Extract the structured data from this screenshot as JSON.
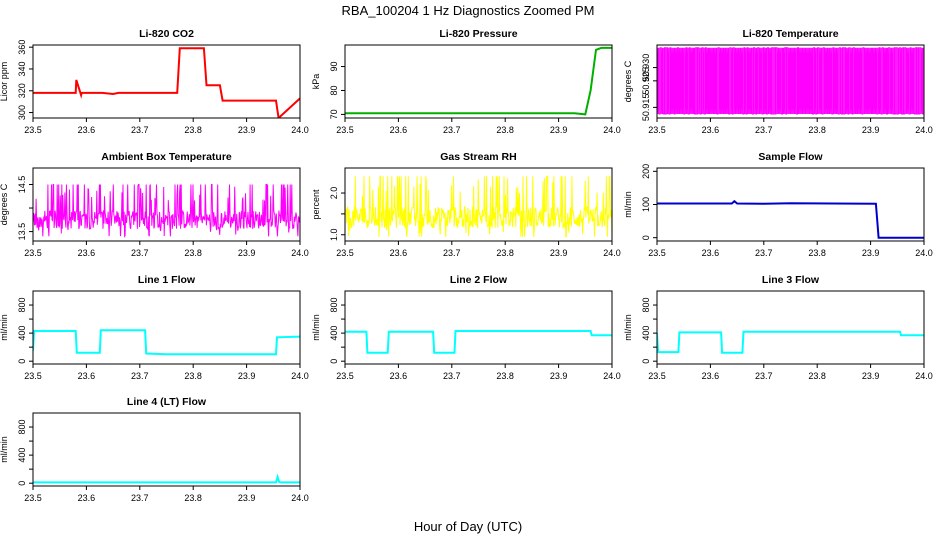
{
  "page": {
    "title": "RBA_100204  1 Hz Diagnostics Zoomed PM",
    "xlabel": "Hour of Day (UTC)"
  },
  "chart_data": [
    {
      "type": "line",
      "title": "Li-820 CO2",
      "ylabel": "Licor ppm",
      "color": "#ff0000",
      "xlim": [
        23.5,
        24.0
      ],
      "ylim": [
        295,
        362
      ],
      "xticks": [
        23.5,
        23.6,
        23.7,
        23.8,
        23.9,
        24.0
      ],
      "yticks": [
        300,
        320,
        340,
        360
      ],
      "ytick_labels": [
        "300",
        "320",
        "340",
        "360"
      ],
      "x": [
        23.5,
        23.58,
        23.581,
        23.59,
        23.591,
        23.6,
        23.63,
        23.65,
        23.66,
        23.77,
        23.775,
        23.82,
        23.825,
        23.85,
        23.855,
        23.955,
        23.96,
        24.0
      ],
      "y": [
        318,
        318,
        330,
        316,
        318,
        318,
        318,
        317,
        318,
        318,
        359,
        359,
        325,
        325,
        311,
        311,
        295,
        313
      ]
    },
    {
      "type": "line",
      "title": "Li-820 Pressure",
      "ylabel": "kPa",
      "color": "#00b000",
      "xlim": [
        23.5,
        24.0
      ],
      "ylim": [
        68.5,
        99
      ],
      "xticks": [
        23.5,
        23.6,
        23.7,
        23.8,
        23.9,
        24.0
      ],
      "yticks": [
        70,
        80,
        90
      ],
      "ytick_labels": [
        "70",
        "80",
        "90"
      ],
      "x": [
        23.5,
        23.93,
        23.95,
        23.96,
        23.97,
        23.98,
        24.0
      ],
      "y": [
        70.5,
        70.5,
        70.0,
        80,
        97,
        97.8,
        97.8
      ]
    },
    {
      "type": "line",
      "title": "Li-820 Temperature",
      "ylabel": "degrees C",
      "color": "#ff00ff",
      "xlim": [
        23.5,
        24.0
      ],
      "ylim": [
        50.911,
        50.9385
      ],
      "xticks": [
        23.5,
        23.6,
        23.7,
        23.8,
        23.9,
        24.0
      ],
      "yticks": [
        50.915,
        50.925,
        50.93
      ],
      "ytick_labels": [
        "50.915",
        "50.925",
        "50.930"
      ],
      "x": [
        23.5,
        24.0
      ],
      "y": [
        50.9125,
        50.9375
      ]
    },
    {
      "type": "line",
      "title": "Ambient Box Temperature",
      "ylabel": "degrees C",
      "color": "#ff00ff",
      "xlim": [
        23.5,
        24.0
      ],
      "ylim": [
        13.3,
        14.85
      ],
      "xticks": [
        23.5,
        23.6,
        23.7,
        23.8,
        23.9,
        24.0
      ],
      "yticks": [
        13.5,
        14.0,
        14.5
      ],
      "ytick_labels": [
        "13.5",
        "",
        "14.5"
      ],
      "x": [
        23.5,
        24.0
      ],
      "y": [
        13.4,
        14.5
      ]
    },
    {
      "type": "line",
      "title": "Gas Stream RH",
      "ylabel": "percent",
      "color": "#ffff00",
      "xlim": [
        23.5,
        24.0
      ],
      "ylim": [
        0.85,
        2.6
      ],
      "xticks": [
        23.5,
        23.6,
        23.7,
        23.8,
        23.9,
        24.0
      ],
      "yticks": [
        1.0,
        1.5,
        2.0
      ],
      "ytick_labels": [
        "1.0",
        "",
        "2.0"
      ],
      "x": [
        23.5,
        24.0
      ],
      "y": [
        0.95,
        2.4
      ]
    },
    {
      "type": "line",
      "title": "Sample Flow",
      "ylabel": "ml/min",
      "color": "#0000cc",
      "xlim": [
        23.5,
        24.0
      ],
      "ylim": [
        -10,
        210
      ],
      "xticks": [
        23.5,
        23.6,
        23.7,
        23.8,
        23.9,
        24.0
      ],
      "yticks": [
        0,
        100,
        200
      ],
      "ytick_labels": [
        "0",
        "100",
        "200"
      ],
      "x": [
        23.5,
        23.64,
        23.645,
        23.65,
        23.7,
        23.75,
        23.91,
        23.915,
        23.92,
        24.0
      ],
      "y": [
        103,
        103,
        110,
        103,
        102,
        104,
        102,
        0,
        0,
        0
      ]
    },
    {
      "type": "line",
      "title": "Line 1 Flow",
      "ylabel": "ml/min",
      "color": "#00ffff",
      "xlim": [
        23.5,
        24.0
      ],
      "ylim": [
        -40,
        1000
      ],
      "xticks": [
        23.5,
        23.6,
        23.7,
        23.8,
        23.9,
        24.0
      ],
      "yticks": [
        0,
        200,
        400,
        600,
        800
      ],
      "ytick_labels": [
        "0",
        "",
        "400",
        "",
        "800"
      ],
      "x": [
        23.5,
        23.502,
        23.58,
        23.582,
        23.625,
        23.627,
        23.71,
        23.712,
        23.75,
        23.955,
        23.957,
        24.0
      ],
      "y": [
        150,
        430,
        430,
        120,
        120,
        440,
        440,
        110,
        100,
        100,
        340,
        350
      ]
    },
    {
      "type": "line",
      "title": "Line 2 Flow",
      "ylabel": "ml/min",
      "color": "#00ffff",
      "xlim": [
        23.5,
        24.0
      ],
      "ylim": [
        -40,
        1000
      ],
      "xticks": [
        23.5,
        23.6,
        23.7,
        23.8,
        23.9,
        24.0
      ],
      "yticks": [
        0,
        200,
        400,
        600,
        800
      ],
      "ytick_labels": [
        "0",
        "",
        "400",
        "",
        "800"
      ],
      "x": [
        23.5,
        23.54,
        23.542,
        23.58,
        23.582,
        23.665,
        23.667,
        23.705,
        23.707,
        23.96,
        23.962,
        24.0
      ],
      "y": [
        420,
        420,
        120,
        120,
        420,
        420,
        120,
        120,
        430,
        430,
        370,
        370
      ]
    },
    {
      "type": "line",
      "title": "Line 3 Flow",
      "ylabel": "ml/min",
      "color": "#00ffff",
      "xlim": [
        23.5,
        24.0
      ],
      "ylim": [
        -40,
        1000
      ],
      "xticks": [
        23.5,
        23.6,
        23.7,
        23.8,
        23.9,
        24.0
      ],
      "yticks": [
        0,
        200,
        400,
        600,
        800
      ],
      "ytick_labels": [
        "0",
        "",
        "400",
        "",
        "800"
      ],
      "x": [
        23.5,
        23.502,
        23.54,
        23.542,
        23.62,
        23.622,
        23.66,
        23.662,
        23.955,
        23.957,
        24.0
      ],
      "y": [
        400,
        130,
        130,
        410,
        410,
        120,
        120,
        420,
        420,
        370,
        370
      ]
    },
    {
      "type": "line",
      "title": "Line 4 (LT) Flow",
      "ylabel": "ml/min",
      "color": "#00ffff",
      "xlim": [
        23.5,
        24.0
      ],
      "ylim": [
        -40,
        1000
      ],
      "xticks": [
        23.5,
        23.6,
        23.7,
        23.8,
        23.9,
        24.0
      ],
      "yticks": [
        0,
        200,
        400,
        600,
        800
      ],
      "ytick_labels": [
        "0",
        "",
        "400",
        "",
        "800"
      ],
      "x": [
        23.5,
        23.955,
        23.958,
        23.961,
        23.965,
        24.0
      ],
      "y": [
        12,
        12,
        90,
        15,
        12,
        12
      ]
    }
  ]
}
